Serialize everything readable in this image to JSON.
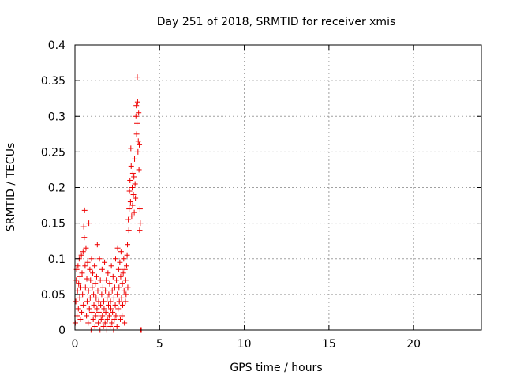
{
  "chart_data": {
    "type": "scatter",
    "title": "Day 251 of 2018, SRMTID for receiver xmis",
    "xlabel": "GPS time / hours",
    "ylabel": "SRMTID / TECUs",
    "xlim": [
      0,
      24
    ],
    "ylim": [
      0,
      0.4
    ],
    "xticks": [
      0,
      5,
      10,
      15,
      20
    ],
    "xtick_labels": [
      "0",
      "5",
      "10",
      "15",
      "20"
    ],
    "yticks": [
      0,
      0.05,
      0.1,
      0.15,
      0.2,
      0.25,
      0.3,
      0.35,
      0.4
    ],
    "ytick_labels": [
      "0",
      "0.05",
      "0.1",
      "0.15",
      "0.2",
      "0.25",
      "0.3",
      "0.35",
      "0.4"
    ],
    "grid": true,
    "marker": "plus",
    "color": "#ee0000",
    "series": [
      {
        "name": "SRMTID",
        "points": [
          [
            0.02,
            0.01
          ],
          [
            0.05,
            0.04
          ],
          [
            0.08,
            0.07
          ],
          [
            0.1,
            0.085
          ],
          [
            0.12,
            0.02
          ],
          [
            0.15,
            0.055
          ],
          [
            0.18,
            0.09
          ],
          [
            0.2,
            0.03
          ],
          [
            0.22,
            0.065
          ],
          [
            0.25,
            0.1
          ],
          [
            0.28,
            0.045
          ],
          [
            0.3,
            0.075
          ],
          [
            0.32,
            0.015
          ],
          [
            0.35,
            0.06
          ],
          [
            0.38,
            0.105
          ],
          [
            0.4,
            0.025
          ],
          [
            0.42,
            0.08
          ],
          [
            0.45,
            0.05
          ],
          [
            0.48,
            0.11
          ],
          [
            0.5,
            0.035
          ],
          [
            0.52,
            0.145
          ],
          [
            0.55,
            0.13
          ],
          [
            0.57,
            0.168
          ],
          [
            0.6,
            0.09
          ],
          [
            0.62,
            0.06
          ],
          [
            0.65,
            0.115
          ],
          [
            0.68,
            0.02
          ],
          [
            0.7,
            0.072
          ],
          [
            0.72,
            0.04
          ],
          [
            0.75,
            0.095
          ],
          [
            0.78,
            0.01
          ],
          [
            0.8,
            0.055
          ],
          [
            0.82,
            0.15
          ],
          [
            0.85,
            0.03
          ],
          [
            0.88,
            0.085
          ],
          [
            0.9,
            0.045
          ],
          [
            0.92,
            0.07
          ],
          [
            0.95,
            0.0
          ],
          [
            0.98,
            0.1
          ],
          [
            1.0,
            0.025
          ],
          [
            1.02,
            0.06
          ],
          [
            1.05,
            0.08
          ],
          [
            1.08,
            0.015
          ],
          [
            1.1,
            0.05
          ],
          [
            1.12,
            0.035
          ],
          [
            1.15,
            0.09
          ],
          [
            1.18,
            0.005
          ],
          [
            1.2,
            0.065
          ],
          [
            1.22,
            0.02
          ],
          [
            1.25,
            0.045
          ],
          [
            1.28,
            0.075
          ],
          [
            1.3,
            0.03
          ],
          [
            1.32,
            0.12
          ],
          [
            1.35,
            0.055
          ],
          [
            1.38,
            0.01
          ],
          [
            1.4,
            0.04
          ],
          [
            1.42,
            0.025
          ],
          [
            1.45,
            0.1
          ],
          [
            1.48,
            0.0
          ],
          [
            1.5,
            0.07
          ],
          [
            1.52,
            0.035
          ],
          [
            1.55,
            0.015
          ],
          [
            1.58,
            0.05
          ],
          [
            1.6,
            0.085
          ],
          [
            1.62,
            0.02
          ],
          [
            1.65,
            0.06
          ],
          [
            1.68,
            0.005
          ],
          [
            1.7,
            0.04
          ],
          [
            1.72,
            0.03
          ],
          [
            1.75,
            0.095
          ],
          [
            1.78,
            0.01
          ],
          [
            1.8,
            0.055
          ],
          [
            1.82,
            0.025
          ],
          [
            1.85,
            0.07
          ],
          [
            1.88,
            0.0
          ],
          [
            1.9,
            0.045
          ],
          [
            1.92,
            0.015
          ],
          [
            1.95,
            0.08
          ],
          [
            1.98,
            0.035
          ],
          [
            2.0,
            0.05
          ],
          [
            2.02,
            0.02
          ],
          [
            2.05,
            0.065
          ],
          [
            2.08,
            0.005
          ],
          [
            2.1,
            0.04
          ],
          [
            2.12,
            0.03
          ],
          [
            2.15,
            0.09
          ],
          [
            2.18,
            0.01
          ],
          [
            2.2,
            0.055
          ],
          [
            2.22,
            0.025
          ],
          [
            2.25,
            0.075
          ],
          [
            2.28,
            0.0
          ],
          [
            2.3,
            0.045
          ],
          [
            2.32,
            0.015
          ],
          [
            2.35,
            0.06
          ],
          [
            2.38,
            0.035
          ],
          [
            2.4,
            0.1
          ],
          [
            2.42,
            0.02
          ],
          [
            2.45,
            0.07
          ],
          [
            2.48,
            0.005
          ],
          [
            2.5,
            0.05
          ],
          [
            2.52,
            0.115
          ],
          [
            2.55,
            0.03
          ],
          [
            2.58,
            0.085
          ],
          [
            2.6,
            0.06
          ],
          [
            2.62,
            0.04
          ],
          [
            2.65,
            0.095
          ],
          [
            2.68,
            0.015
          ],
          [
            2.7,
            0.075
          ],
          [
            2.72,
            0.11
          ],
          [
            2.75,
            0.045
          ],
          [
            2.78,
            0.02
          ],
          [
            2.8,
            0.065
          ],
          [
            2.82,
            0.035
          ],
          [
            2.85,
            0.08
          ],
          [
            2.88,
            0.1
          ],
          [
            2.9,
            0.055
          ],
          [
            2.92,
            0.01
          ],
          [
            2.95,
            0.085
          ],
          [
            2.98,
            0.04
          ],
          [
            3.0,
            0.07
          ],
          [
            3.02,
            0.05
          ],
          [
            3.05,
            0.09
          ],
          [
            3.08,
            0.105
          ],
          [
            3.1,
            0.12
          ],
          [
            3.12,
            0.06
          ],
          [
            3.15,
            0.155
          ],
          [
            3.18,
            0.14
          ],
          [
            3.2,
            0.17
          ],
          [
            3.22,
            0.195
          ],
          [
            3.25,
            0.21
          ],
          [
            3.28,
            0.18
          ],
          [
            3.3,
            0.255
          ],
          [
            3.32,
            0.23
          ],
          [
            3.35,
            0.16
          ],
          [
            3.38,
            0.2
          ],
          [
            3.4,
            0.175
          ],
          [
            3.42,
            0.22
          ],
          [
            3.45,
            0.19
          ],
          [
            3.48,
            0.215
          ],
          [
            3.5,
            0.165
          ],
          [
            3.52,
            0.24
          ],
          [
            3.55,
            0.205
          ],
          [
            3.57,
            0.185
          ],
          [
            3.6,
            0.3
          ],
          [
            3.62,
            0.315
          ],
          [
            3.64,
            0.275
          ],
          [
            3.66,
            0.29
          ],
          [
            3.68,
            0.355
          ],
          [
            3.7,
            0.32
          ],
          [
            3.72,
            0.25
          ],
          [
            3.74,
            0.265
          ],
          [
            3.76,
            0.305
          ],
          [
            3.78,
            0.225
          ],
          [
            3.8,
            0.26
          ],
          [
            3.82,
            0.14
          ],
          [
            3.84,
            0.17
          ],
          [
            3.86,
            0.15
          ],
          [
            3.88,
            0.0
          ],
          [
            3.9,
            0.0
          ],
          [
            3.92,
            0.0
          ]
        ]
      }
    ]
  }
}
